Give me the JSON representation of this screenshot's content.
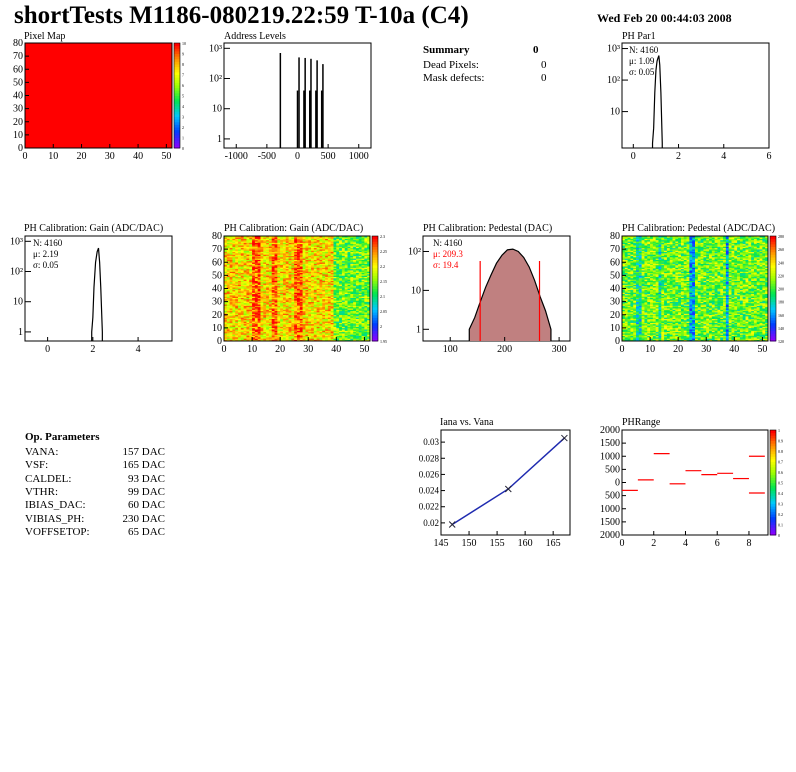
{
  "header": {
    "title": "shortTests M1186-080219.22:59 T-10a (C4)",
    "date": "Wed Feb 20 00:44:03 2008"
  },
  "summary": {
    "title": "Summary",
    "value": "0",
    "rows": [
      {
        "label": "Dead Pixels:",
        "value": "0"
      },
      {
        "label": "Mask defects:",
        "value": "0"
      }
    ]
  },
  "op_params": {
    "title": "Op. Parameters",
    "rows": [
      {
        "label": "VANA:",
        "value": "157 DAC"
      },
      {
        "label": "VSF:",
        "value": "165 DAC"
      },
      {
        "label": "CALDEL:",
        "value": "93 DAC"
      },
      {
        "label": "VTHR:",
        "value": "99 DAC"
      },
      {
        "label": "IBIAS_DAC:",
        "value": "60 DAC"
      },
      {
        "label": "VIBIAS_PH:",
        "value": "230 DAC"
      },
      {
        "label": "VOFFSETOP:",
        "value": "65 DAC"
      }
    ]
  },
  "colors": {
    "red": "#ff0000",
    "blue": "#1f2bb0",
    "black": "#000000",
    "pedestal_fill": "#c08080"
  },
  "chart_data": [
    {
      "id": "pixel_map",
      "type": "heatmap",
      "title": "Pixel Map",
      "xlim": [
        0,
        52
      ],
      "ylim": [
        0,
        80
      ],
      "x_ticks": [
        "0",
        "10",
        "20",
        "30",
        "40",
        "50"
      ],
      "y_ticks": [
        "0",
        "10",
        "20",
        "30",
        "40",
        "50",
        "60",
        "70",
        "80"
      ],
      "z_ticks": [
        "0",
        "1",
        "2",
        "3",
        "4",
        "5",
        "6",
        "7",
        "8",
        "9",
        "10"
      ],
      "zlim": [
        0,
        10
      ],
      "uniform_value": 10
    },
    {
      "id": "address_levels",
      "type": "bar",
      "title": "Address Levels",
      "xlim": [
        -1200,
        1200
      ],
      "log_y": true,
      "x_ticks": [
        "-1000",
        "-500",
        "0",
        "500",
        "1000"
      ],
      "y_ticks": [
        "1",
        "10",
        "10²",
        "10³"
      ],
      "peaks": [
        {
          "x": -280,
          "y": 700
        },
        {
          "x": 0,
          "y": 40
        },
        {
          "x": 25,
          "y": 500
        },
        {
          "x": 105,
          "y": 40
        },
        {
          "x": 125,
          "y": 480
        },
        {
          "x": 200,
          "y": 40
        },
        {
          "x": 220,
          "y": 450
        },
        {
          "x": 300,
          "y": 40
        },
        {
          "x": 320,
          "y": 400
        },
        {
          "x": 395,
          "y": 40
        },
        {
          "x": 415,
          "y": 300
        }
      ]
    },
    {
      "id": "ph_par1",
      "type": "line",
      "title": "PH Par1",
      "xlim": [
        -0.5,
        6
      ],
      "log_y": true,
      "x_ticks": [
        "0",
        "2",
        "4",
        "6"
      ],
      "y_ticks": [
        "10",
        "10²",
        "10³"
      ],
      "stats": {
        "N": "N: 4160",
        "mu": "μ: 1.09",
        "sigma": "σ: 0.05"
      },
      "curve": [
        [
          0.85,
          1
        ],
        [
          0.9,
          3
        ],
        [
          0.95,
          40
        ],
        [
          1.0,
          200
        ],
        [
          1.05,
          400
        ],
        [
          1.09,
          500
        ],
        [
          1.13,
          600
        ],
        [
          1.17,
          300
        ],
        [
          1.22,
          40
        ],
        [
          1.28,
          1
        ]
      ]
    },
    {
      "id": "ph_gain_hist",
      "type": "line",
      "title": "PH Calibration: Gain (ADC/DAC)",
      "xlim": [
        -1,
        5.5
      ],
      "log_y": true,
      "x_ticks": [
        "0",
        "2",
        "4"
      ],
      "y_ticks": [
        "1",
        "10",
        "10²",
        "10³"
      ],
      "stats": {
        "N": "N: 4160",
        "mu": "μ: 2.19",
        "sigma": "σ: 0.05"
      },
      "curve": [
        [
          1.95,
          1
        ],
        [
          2.0,
          3
        ],
        [
          2.05,
          30
        ],
        [
          2.12,
          200
        ],
        [
          2.19,
          450
        ],
        [
          2.25,
          600
        ],
        [
          2.3,
          200
        ],
        [
          2.35,
          30
        ],
        [
          2.42,
          1
        ]
      ]
    },
    {
      "id": "ph_gain_map",
      "type": "heatmap",
      "title": "PH Calibration: Gain (ADC/DAC)",
      "xlim": [
        0,
        52
      ],
      "ylim": [
        0,
        80
      ],
      "x_ticks": [
        "0",
        "10",
        "20",
        "30",
        "40",
        "50"
      ],
      "y_ticks": [
        "0",
        "10",
        "20",
        "30",
        "40",
        "50",
        "60",
        "70",
        "80"
      ],
      "z_ticks": [
        "1.95",
        "2",
        "2.05",
        "2.1",
        "2.15",
        "2.2",
        "2.25",
        "2.3"
      ],
      "zlim": [
        1.95,
        2.3
      ]
    },
    {
      "id": "ph_pedestal_hist",
      "type": "line",
      "title": "PH Calibration: Pedestal (DAC)",
      "xlim": [
        50,
        320
      ],
      "log_y": true,
      "x_ticks": [
        "100",
        "200",
        "300"
      ],
      "y_ticks": [
        "1",
        "10",
        "10²"
      ],
      "stats": {
        "N": "N: 4160",
        "mu": "μ: 209.3",
        "sigma": "σ: 19.4"
      },
      "cut_lines": [
        155,
        264
      ],
      "curve": [
        [
          135,
          1
        ],
        [
          145,
          2
        ],
        [
          155,
          5
        ],
        [
          165,
          12
        ],
        [
          175,
          25
        ],
        [
          185,
          50
        ],
        [
          195,
          80
        ],
        [
          205,
          110
        ],
        [
          215,
          115
        ],
        [
          225,
          100
        ],
        [
          235,
          70
        ],
        [
          245,
          40
        ],
        [
          255,
          18
        ],
        [
          265,
          7
        ],
        [
          275,
          3
        ],
        [
          285,
          1
        ]
      ]
    },
    {
      "id": "ph_pedestal_map",
      "type": "heatmap",
      "title": "PH Calibration: Pedestal (ADC/DAC)",
      "xlim": [
        0,
        52
      ],
      "ylim": [
        0,
        80
      ],
      "x_ticks": [
        "0",
        "10",
        "20",
        "30",
        "40",
        "50"
      ],
      "y_ticks": [
        "0",
        "10",
        "20",
        "30",
        "40",
        "50",
        "60",
        "70",
        "80"
      ],
      "z_ticks": [
        "120",
        "140",
        "160",
        "180",
        "200",
        "220",
        "240",
        "260",
        "280"
      ],
      "zlim": [
        120,
        280
      ]
    },
    {
      "id": "iana_vana",
      "type": "line",
      "title": "Iana vs. Vana",
      "xlim": [
        145,
        168
      ],
      "ylim": [
        0.0185,
        0.0315
      ],
      "x_ticks": [
        "145",
        "150",
        "155",
        "160",
        "165"
      ],
      "y_ticks": [
        "0.02",
        "0.022",
        "0.024",
        "0.026",
        "0.028",
        "0.03"
      ],
      "x": [
        147,
        157,
        167
      ],
      "y": [
        0.0198,
        0.0242,
        0.0305
      ]
    },
    {
      "id": "phrange",
      "type": "scatter",
      "title": "PHRange",
      "xlim": [
        0,
        9.2
      ],
      "ylim": [
        -2000,
        2000
      ],
      "x_ticks": [
        "0",
        "2",
        "4",
        "6",
        "8"
      ],
      "y_ticks": [
        "2000",
        "1500",
        "1000",
        "500",
        "0",
        "500",
        "1000",
        "1500",
        "2000"
      ],
      "z_ticks": [
        "0",
        "0.1",
        "0.2",
        "0.3",
        "0.4",
        "0.5",
        "0.6",
        "0.7",
        "0.8",
        "0.9",
        "1"
      ],
      "segments": [
        {
          "x0": 0,
          "x1": 1,
          "y": -300
        },
        {
          "x0": 1,
          "x1": 2,
          "y": 100
        },
        {
          "x0": 2,
          "x1": 3,
          "y": 1100
        },
        {
          "x0": 3,
          "x1": 4,
          "y": -50
        },
        {
          "x0": 4,
          "x1": 5,
          "y": 450
        },
        {
          "x0": 5,
          "x1": 6,
          "y": 300
        },
        {
          "x0": 6,
          "x1": 7,
          "y": 350
        },
        {
          "x0": 7,
          "x1": 8,
          "y": 150
        },
        {
          "x0": 8,
          "x1": 9,
          "y": 1000
        },
        {
          "x0": 8,
          "x1": 9,
          "y": -400
        }
      ]
    }
  ]
}
